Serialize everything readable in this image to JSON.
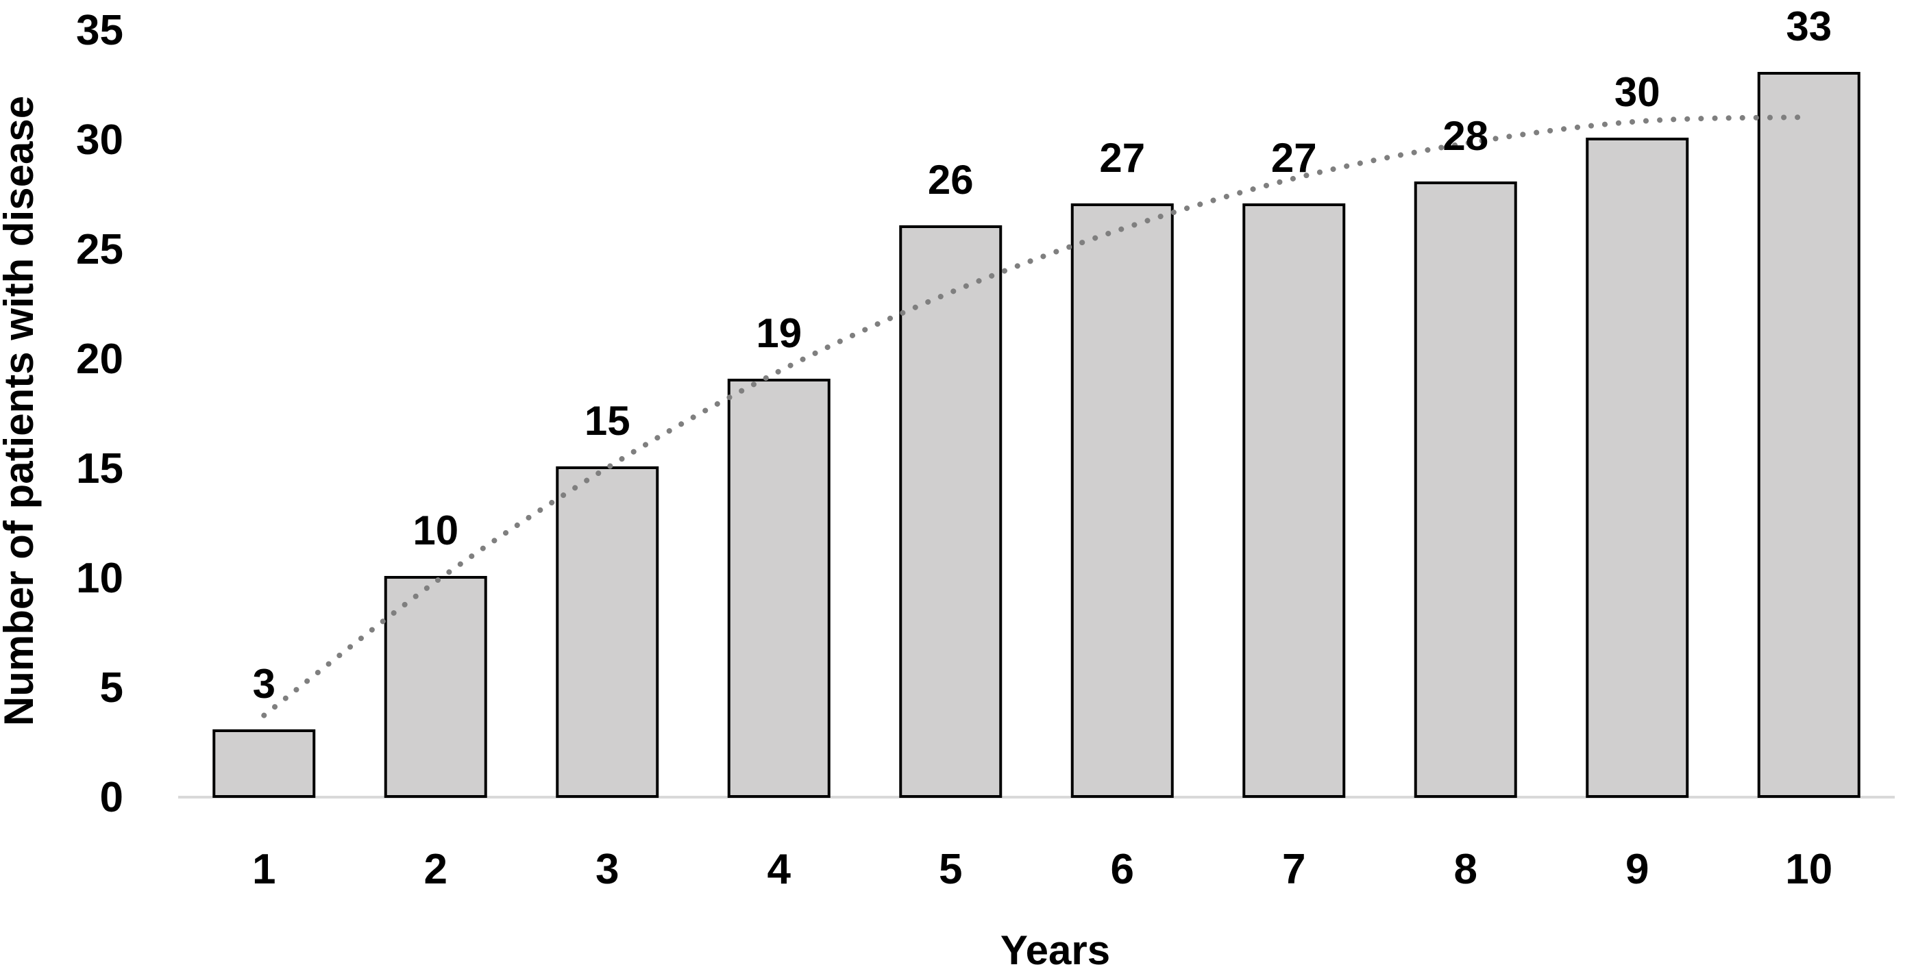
{
  "chart_data": {
    "type": "bar",
    "title": "",
    "xlabel": "Years",
    "ylabel": "Number of patients with disease",
    "categories": [
      "1",
      "2",
      "3",
      "4",
      "5",
      "6",
      "7",
      "8",
      "9",
      "10"
    ],
    "values": [
      3,
      10,
      15,
      19,
      26,
      27,
      27,
      28,
      30,
      33
    ],
    "data_labels": [
      "3",
      "10",
      "15",
      "19",
      "26",
      "27",
      "27",
      "28",
      "30",
      "33"
    ],
    "y_ticks": [
      "0",
      "5",
      "10",
      "15",
      "20",
      "25",
      "30",
      "35"
    ],
    "ylim": [
      0,
      35
    ],
    "grid": false,
    "legend": "none",
    "trendline": {
      "style": "dotted",
      "kind": "polynomial",
      "values": [
        3.7,
        9.8,
        15.0,
        19.4,
        23.0,
        25.9,
        28.2,
        29.8,
        30.8,
        31.0
      ]
    },
    "colors": {
      "bar_fill": "#d0cfcf",
      "bar_stroke": "#000000",
      "trendline": "#7f7f7f",
      "axis": "#d9d9d9",
      "text": "#000000"
    }
  }
}
